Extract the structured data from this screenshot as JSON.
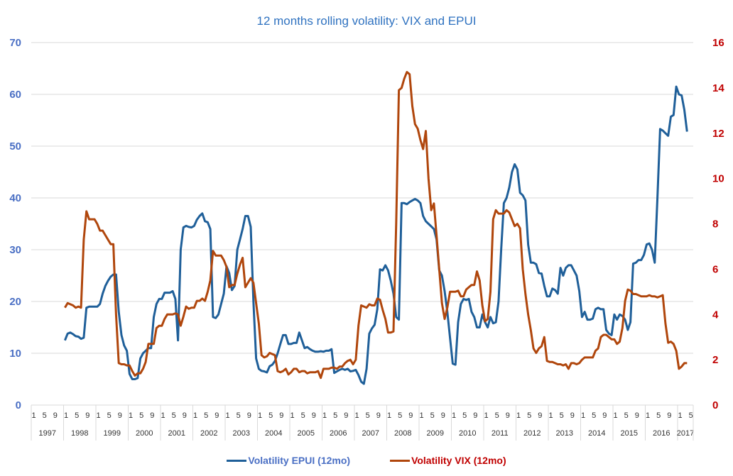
{
  "chart_data": {
    "type": "line",
    "title": "12 months rolling volatility: VIX and EPUI",
    "xlabel": "",
    "x_start": "1997-01",
    "x_month_tick_labels": [
      "1",
      "5",
      "9"
    ],
    "x_year_labels": [
      "1997",
      "1998",
      "1999",
      "2000",
      "2001",
      "2002",
      "2003",
      "2004",
      "2005",
      "2006",
      "2007",
      "2008",
      "2009",
      "2010",
      "2011",
      "2012",
      "2013",
      "2014",
      "2015",
      "2016",
      "2017"
    ],
    "x_last_year_month_ticks": [
      "1",
      "5"
    ],
    "y_left": {
      "label": "",
      "range": [
        0,
        70
      ],
      "ticks": [
        0,
        10,
        20,
        30,
        40,
        50,
        60,
        70
      ],
      "color": "#4a6fc4"
    },
    "y_right": {
      "label": "",
      "range": [
        0,
        16
      ],
      "ticks": [
        0,
        2,
        4,
        6,
        8,
        10,
        12,
        14,
        16
      ],
      "color": "#c00000"
    },
    "grid": true,
    "legend_position": "bottom",
    "series": [
      {
        "name": "Volatility EPUI (12mo)",
        "axis": "left",
        "color": "#1f5f99",
        "legend_text_color": "#4a6fc4",
        "start": "1998-01",
        "values": [
          12.5,
          13.8,
          14,
          13.7,
          13.3,
          13.2,
          12.8,
          13,
          18.8,
          19,
          19,
          19,
          19,
          19.5,
          21.5,
          23,
          24,
          24.8,
          25.2,
          25.2,
          18,
          13.5,
          11.5,
          10.5,
          6,
          5,
          5,
          5.2,
          9,
          10,
          10.5,
          11,
          11,
          17,
          19.5,
          20.5,
          20.5,
          21.7,
          21.7,
          21.7,
          22,
          20.5,
          12.5,
          30,
          34.3,
          34.6,
          34.4,
          34.3,
          34.6,
          35.8,
          36.5,
          37,
          35.5,
          35.3,
          34,
          17,
          16.8,
          17.5,
          19.5,
          21.5,
          26.8,
          25.5,
          22.2,
          23,
          30,
          32,
          34,
          36.5,
          36.5,
          34.4,
          20,
          9,
          7,
          6.6,
          6.5,
          6.3,
          7.5,
          7.8,
          8.5,
          10,
          11.8,
          13.5,
          13.5,
          11.8,
          11.8,
          12,
          12,
          14,
          12.5,
          11,
          11.2,
          10.8,
          10.5,
          10.3,
          10.3,
          10.4,
          10.3,
          10.5,
          10.5,
          10.8,
          6.2,
          6.5,
          6.8,
          7,
          6.8,
          7,
          6.5,
          6.6,
          6.8,
          5.8,
          4.5,
          4.1,
          7,
          13.8,
          14.8,
          15.5,
          18.5,
          26.2,
          26,
          27,
          26,
          24,
          21.5,
          17,
          16.5,
          39,
          39,
          38.8,
          39.2,
          39.5,
          39.8,
          39.5,
          39,
          36.5,
          35.5,
          35,
          34.5,
          34,
          32,
          26,
          25,
          22,
          18,
          13,
          8,
          7.8,
          16,
          19.5,
          20.5,
          20.3,
          20.5,
          18,
          17,
          15,
          15,
          17.5,
          16,
          15,
          17,
          15.8,
          16,
          20,
          30,
          39,
          40,
          42,
          45,
          46.5,
          45.5,
          41,
          40.5,
          39.5,
          31,
          27.5,
          27.5,
          27.2,
          25.5,
          25.4,
          23,
          21,
          21,
          22.5,
          22.2,
          21.5,
          26.5,
          25,
          26.5,
          27,
          27,
          26,
          25,
          22,
          17,
          18,
          16.5,
          16.5,
          16.7,
          18.5,
          18.8,
          18.5,
          18.5,
          14.5,
          13.8,
          13.5,
          17.5,
          16.5,
          17.5,
          17.2,
          16.5,
          14.5,
          16,
          27.3,
          27.5,
          28,
          28,
          29,
          31,
          31.2,
          30,
          27.5,
          40,
          53.3,
          53,
          52.5,
          52,
          55.7,
          56,
          61.5,
          60,
          59.8,
          57,
          52.8
        ]
      },
      {
        "name": "Volatility VIX (12mo)",
        "axis": "right",
        "color": "#b0460c",
        "legend_text_color": "#c00000",
        "start": "1998-01",
        "values": [
          4.3,
          4.5,
          4.45,
          4.4,
          4.3,
          4.35,
          4.3,
          7.3,
          8.55,
          8.2,
          8.2,
          8.2,
          8,
          7.7,
          7.7,
          7.5,
          7.3,
          7.1,
          7.1,
          4,
          1.85,
          1.8,
          1.8,
          1.75,
          1.75,
          1.5,
          1.3,
          1.4,
          1.4,
          1.6,
          1.9,
          2.7,
          2.7,
          2.7,
          3.4,
          3.5,
          3.5,
          3.8,
          4,
          4,
          4,
          4.05,
          4,
          3.5,
          3.9,
          4.35,
          4.25,
          4.3,
          4.3,
          4.6,
          4.6,
          4.7,
          4.6,
          5,
          5.5,
          6.8,
          6.6,
          6.6,
          6.6,
          6.4,
          6.1,
          5.2,
          5.3,
          5.3,
          5.8,
          6.2,
          6.5,
          5.2,
          5.4,
          5.6,
          5.4,
          4.5,
          3.6,
          2.2,
          2.1,
          2.15,
          2.3,
          2.25,
          2.2,
          1.5,
          1.45,
          1.5,
          1.6,
          1.35,
          1.45,
          1.6,
          1.6,
          1.45,
          1.5,
          1.5,
          1.4,
          1.45,
          1.45,
          1.45,
          1.5,
          1.2,
          1.6,
          1.6,
          1.6,
          1.65,
          1.65,
          1.6,
          1.7,
          1.7,
          1.85,
          1.95,
          2,
          1.8,
          2,
          3.5,
          4.4,
          4.35,
          4.3,
          4.45,
          4.4,
          4.4,
          4.7,
          4.65,
          4.2,
          3.8,
          3.2,
          3.2,
          3.25,
          8,
          13.9,
          14,
          14.4,
          14.7,
          14.6,
          13.2,
          12.4,
          12.2,
          11.7,
          11.3,
          12.1,
          10,
          8.6,
          8.9,
          7.5,
          6,
          4.5,
          3.8,
          4.3,
          5,
          5,
          5,
          5.05,
          4.8,
          4.8,
          5.1,
          5.2,
          5.3,
          5.3,
          5.9,
          5.5,
          4.4,
          3.7,
          3.8,
          5,
          8.2,
          8.6,
          8.45,
          8.45,
          8.45,
          8.6,
          8.5,
          8.2,
          7.9,
          8,
          7.8,
          6,
          4.9,
          4,
          3.3,
          2.5,
          2.3,
          2.5,
          2.6,
          3.0,
          1.95,
          1.9,
          1.9,
          1.85,
          1.8,
          1.8,
          1.75,
          1.8,
          1.6,
          1.85,
          1.85,
          1.8,
          1.85,
          2,
          2.1,
          2.1,
          2.1,
          2.1,
          2.4,
          2.5,
          3,
          3.1,
          3.1,
          3,
          2.9,
          2.9,
          2.7,
          2.8,
          3.4,
          4.6,
          5.1,
          5.05,
          4.9,
          4.9,
          4.85,
          4.8,
          4.8,
          4.8,
          4.85,
          4.8,
          4.8,
          4.75,
          4.8,
          4.85,
          3.6,
          2.75,
          2.8,
          2.7,
          2.4,
          1.6,
          1.7,
          1.85,
          1.85
        ]
      }
    ]
  }
}
